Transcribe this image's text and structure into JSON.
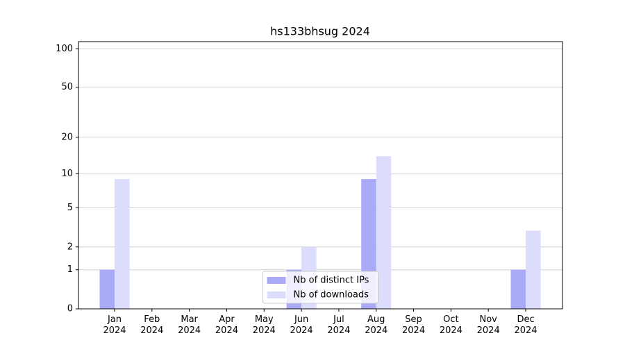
{
  "chart_data": {
    "type": "bar",
    "title": "hs133bhsug 2024",
    "categories": [
      "Jan\n2024",
      "Feb\n2024",
      "Mar\n2024",
      "Apr\n2024",
      "May\n2024",
      "Jun\n2024",
      "Jul\n2024",
      "Aug\n2024",
      "Sep\n2024",
      "Oct\n2024",
      "Nov\n2024",
      "Dec\n2024"
    ],
    "series": [
      {
        "name": "Nb of distinct IPs",
        "color": "#aaaaf8",
        "values": [
          1,
          0,
          0,
          0,
          0,
          1,
          0,
          9,
          0,
          0,
          0,
          1
        ]
      },
      {
        "name": "Nb of downloads",
        "color": "#dcdcfc",
        "values": [
          9,
          0,
          0,
          0,
          0,
          2,
          0,
          14,
          0,
          0,
          0,
          3
        ]
      }
    ],
    "scale": "log1p",
    "ylim": [
      0,
      113.6
    ],
    "yticks": [
      0,
      1,
      2,
      5,
      10,
      20,
      50,
      100
    ],
    "grid": true,
    "legend": "lower center"
  }
}
